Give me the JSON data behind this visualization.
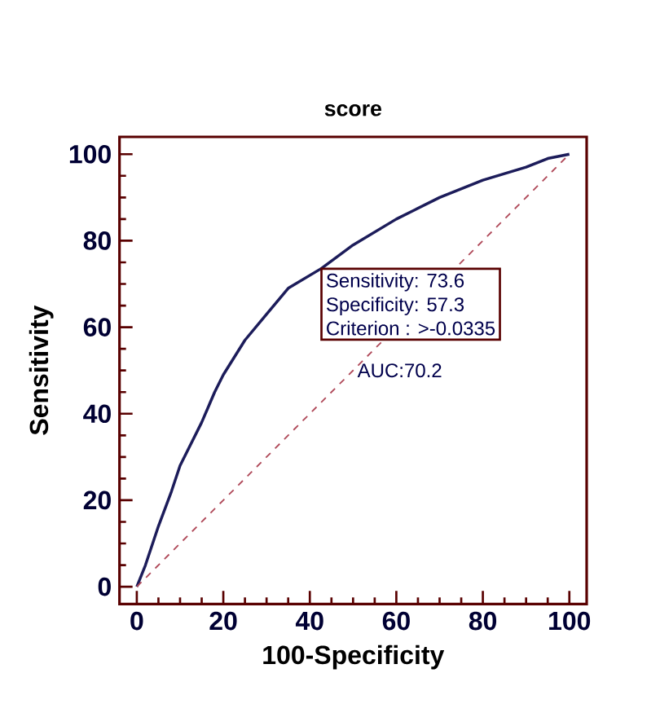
{
  "chart_data": {
    "type": "line",
    "title": "score",
    "xlabel": "100-Specificity",
    "ylabel": "Sensitivity",
    "xlim": [
      -4,
      104
    ],
    "ylim": [
      -4,
      104
    ],
    "xticks": [
      0,
      20,
      40,
      60,
      80,
      100
    ],
    "yticks": [
      0,
      20,
      40,
      60,
      80,
      100
    ],
    "grid": false,
    "series": [
      {
        "color": "#1c1c5a",
        "line_style": "solid",
        "x": [
          0,
          2,
          5,
          8,
          10,
          12,
          15,
          18,
          20,
          25,
          30,
          35,
          42.7,
          50,
          60,
          70,
          80,
          90,
          95,
          100
        ],
        "values": [
          0,
          5,
          14,
          22,
          28,
          32,
          38,
          45,
          49,
          57,
          63,
          69,
          73.6,
          79,
          85,
          90,
          94,
          97,
          99,
          100
        ]
      },
      {
        "color": "#b04a5a",
        "line_style": "dashed",
        "x": [
          0,
          100
        ],
        "values": [
          0,
          100
        ]
      }
    ],
    "annotations": [
      "Sensitivity: 73.6",
      "Specificity: 57.3",
      "Criterion : >-0.0335",
      "AUC:70.2"
    ]
  }
}
